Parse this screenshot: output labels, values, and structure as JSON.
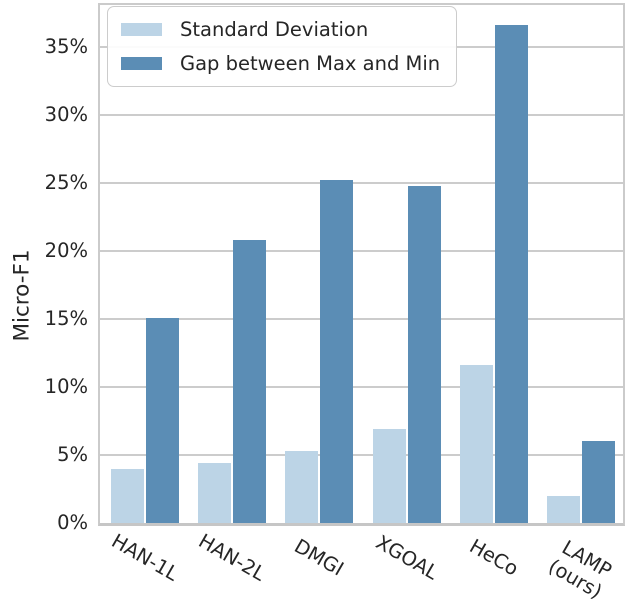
{
  "chart_data": {
    "type": "bar",
    "title": "",
    "xlabel": "",
    "ylabel": "Micro-F1",
    "categories": [
      "HAN-1L",
      "HAN-2L",
      "DMGI",
      "XGOAL",
      "HeCo",
      "LAMP\n(ours)"
    ],
    "series": [
      {
        "name": "Standard Deviation",
        "color": "#bcd4e6",
        "values": [
          4.0,
          4.4,
          5.3,
          6.9,
          11.6,
          2.0
        ]
      },
      {
        "name": "Gap between Max and Min",
        "color": "#5b8db5",
        "values": [
          15.1,
          20.8,
          25.2,
          24.8,
          36.6,
          6.0
        ]
      }
    ],
    "value_unit": "%",
    "ylim": [
      0,
      38.1
    ],
    "yticks": [
      0,
      5,
      10,
      15,
      20,
      25,
      30,
      35
    ],
    "yticklabels": [
      "0%",
      "5%",
      "10%",
      "15%",
      "20%",
      "25%",
      "30%",
      "35%"
    ],
    "grid": "horizontal",
    "grid_color": "#cccccc",
    "text_color": "#262626",
    "legend_position": "upper-left"
  }
}
